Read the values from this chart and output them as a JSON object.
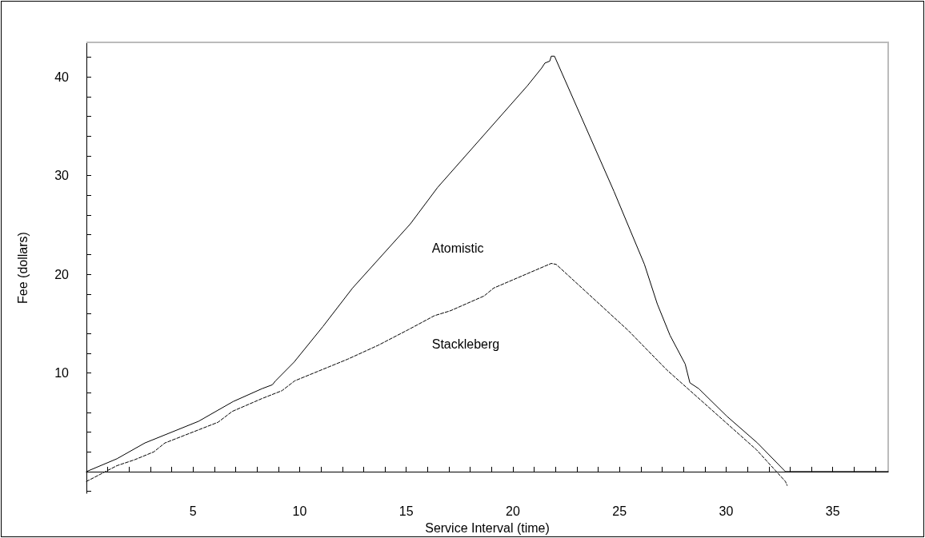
{
  "chart_data": {
    "type": "line",
    "xlabel": "Service Interval (time)",
    "ylabel": "Fee (dollars)",
    "xlim": [
      0,
      37.6
    ],
    "ylim": [
      -2.2,
      43.5
    ],
    "xticks": [
      5,
      10,
      15,
      20,
      25,
      30,
      35
    ],
    "yticks": [
      10,
      20,
      30,
      40
    ],
    "grid": false,
    "legend": false,
    "marker": "none",
    "series": [
      {
        "name": "Atomistic",
        "color": "#000000",
        "line_style": "solid",
        "x": [
          0,
          1.43,
          2.74,
          5.26,
          6.88,
          8.23,
          8.72,
          8.87,
          9.74,
          11.09,
          12.48,
          15.19,
          16.47,
          20.68,
          21.35,
          21.5,
          21.73,
          21.8,
          21.95,
          24.74,
          26.17,
          26.77,
          27.37,
          28.08,
          28.3,
          28.72,
          30.04,
          31.47,
          32.78,
          37.6
        ],
        "values": [
          0,
          1.3,
          2.9,
          5.1,
          7.1,
          8.4,
          8.8,
          9.2,
          11.1,
          14.7,
          18.6,
          25.1,
          28.8,
          39.1,
          40.9,
          41.4,
          41.6,
          42.1,
          42.1,
          28.4,
          21.0,
          17.0,
          13.8,
          10.9,
          9.0,
          8.4,
          5.6,
          2.9,
          0,
          0
        ]
      },
      {
        "name": "Stackleberg",
        "color": "#000000",
        "line_style": "dashed",
        "x": [
          0,
          1.43,
          2.26,
          3.16,
          3.68,
          6.17,
          6.84,
          8.23,
          9.17,
          9.77,
          12.26,
          13.68,
          15.11,
          16.32,
          17.07,
          18.65,
          19.1,
          21.8,
          22.03,
          25.41,
          27.22,
          31.43,
          32.78,
          32.86
        ],
        "values": [
          -1.0,
          0.6,
          1.2,
          2.0,
          2.9,
          5.0,
          6.1,
          7.4,
          8.2,
          9.2,
          11.4,
          12.8,
          14.4,
          15.8,
          16.3,
          17.8,
          18.6,
          21.1,
          21.0,
          14.3,
          10.3,
          2.2,
          -1.0,
          -1.4
        ]
      }
    ]
  }
}
